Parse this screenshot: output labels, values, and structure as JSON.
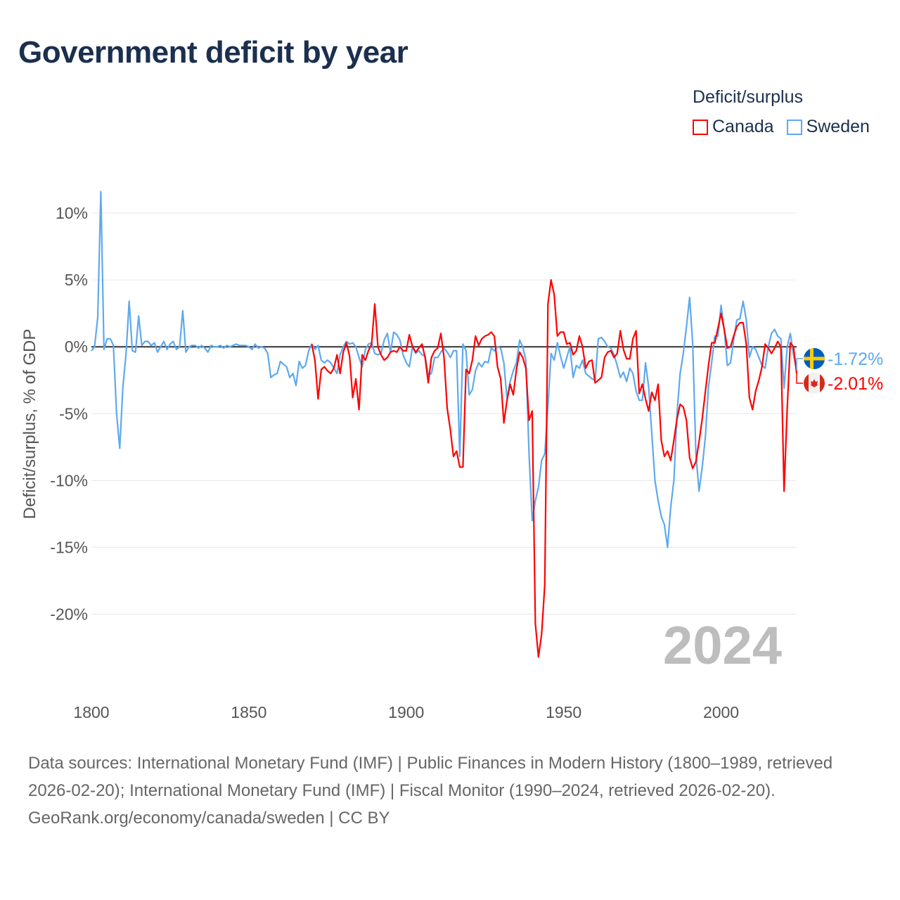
{
  "title": "Government deficit by year",
  "legend": {
    "title": "Deficit/surplus",
    "items": [
      {
        "label": "Canada",
        "color": "#ff0000"
      },
      {
        "label": "Sweden",
        "color": "#5ea9ee"
      }
    ]
  },
  "footer": {
    "sources": "Data sources: International Monetary Fund (IMF) | Public Finances in Modern History (1800–1989, retrieved 2026-02-20); International Monetary Fund (IMF) | Fiscal Monitor (1990–2024, retrieved 2026-02-20).",
    "credit": "GeoRank.org/economy/canada/sweden | CC BY"
  },
  "chart_data": {
    "type": "line",
    "title": "Government deficit by year",
    "xlabel": "",
    "ylabel": "Deficit/surplus, % of GDP",
    "xlim": [
      1800,
      2024
    ],
    "ylim": [
      -25.6,
      12
    ],
    "xticks": [
      1800,
      1850,
      1900,
      1950,
      2000
    ],
    "xtick_labels": [
      "1800",
      "1850",
      "1900",
      "1950",
      "2000"
    ],
    "yticks": [
      10,
      5,
      0,
      -5,
      -10,
      -15,
      -20
    ],
    "ytick_labels": [
      "10%",
      "5%",
      "0%",
      "-5%",
      "-10%",
      "-15%",
      "-20%"
    ],
    "grid": true,
    "legend_position": "top-right",
    "year_watermark": "2024",
    "end_labels": [
      {
        "series": "Sweden",
        "label": "-1.72%",
        "icon": "sweden-flag-icon"
      },
      {
        "series": "Canada",
        "label": "-2.01%",
        "icon": "canada-flag-icon"
      }
    ],
    "series": [
      {
        "name": "Sweden",
        "color": "#5ea9ee",
        "start_year": 1800,
        "values": [
          -0.3,
          0,
          2.2,
          11.6,
          -0.2,
          0.6,
          0.6,
          0.1,
          -5,
          -7.6,
          -3,
          -0.5,
          3.4,
          -0.3,
          -0.4,
          2.3,
          0.1,
          0.4,
          0.4,
          0.1,
          0.3,
          -0.4,
          0,
          0.4,
          -0.2,
          0.2,
          0.4,
          -0.2,
          0,
          2.7,
          -0.4,
          0,
          0.1,
          0.1,
          -0.1,
          0.1,
          -0.1,
          -0.4,
          0.1,
          0,
          0,
          0.1,
          -0.1,
          0.1,
          0,
          0.1,
          0.2,
          0.1,
          0.1,
          0.1,
          0,
          -0.2,
          0.2,
          -0.1,
          0,
          -0.1,
          -0.5,
          -2.3,
          -2.1,
          -2,
          -1.1,
          -1.3,
          -1.5,
          -2.3,
          -2,
          -2.9,
          -1.1,
          -1.6,
          -1.4,
          -0.3,
          0.2,
          -0.2,
          0.1,
          -1,
          -1.2,
          -1,
          -1.2,
          -1.6,
          -2,
          -0.6,
          0,
          0.4,
          0.2,
          0.3,
          0,
          -0.8,
          -1.5,
          -0.2,
          0.2,
          0.3,
          -0.5,
          -0.6,
          -0.5,
          0.5,
          1,
          -0.4,
          1.1,
          0.9,
          0.5,
          -0.6,
          -1.2,
          -1.5,
          0,
          -0.5,
          -0.3,
          -0.6,
          -0.7,
          -2.1,
          -2,
          -0.8,
          -0.8,
          -0.4,
          -0.1,
          -0.4,
          -0.8,
          -0.3,
          -0.3,
          -8.2,
          0.2,
          -0.3,
          -3.6,
          -3.2,
          -1.8,
          -1.2,
          -1.5,
          -1.1,
          -1.2,
          -0.1,
          -0.3,
          0,
          -0.1,
          -1.2,
          -3.9,
          -2.6,
          -1.8,
          -1.2,
          0.5,
          0,
          -1,
          -8,
          -13,
          -11.5,
          -10.5,
          -8.5,
          -8,
          -4.5,
          -0.5,
          -1,
          0.3,
          -0.7,
          -1.6,
          -0.8,
          0,
          -2.3,
          -1.4,
          -1.6,
          -1,
          -2,
          -2.2,
          -2.4,
          -2.5,
          0.6,
          0.7,
          0.4,
          0,
          -0.1,
          -0.6,
          -1.4,
          -2.3,
          -1.9,
          -2.6,
          -1.6,
          -2,
          -3.3,
          -4,
          -4,
          -1.2,
          -3,
          -6.5,
          -10,
          -11.5,
          -12.7,
          -13.3,
          -15,
          -12,
          -10,
          -5,
          -2,
          -0.5,
          1.5,
          3.7,
          0.2,
          -8,
          -10.8,
          -9,
          -6.8,
          -3,
          -1.2,
          0.8,
          0.8,
          3.1,
          1.3,
          -1.4,
          -1.2,
          0.5,
          2,
          2.1,
          3.4,
          2,
          -0.8,
          0,
          -0.2,
          -0.8,
          -1.4,
          -1.6,
          0,
          1,
          1.3,
          0.8,
          0.6,
          -3.1,
          0,
          1,
          -0.6,
          -1.72
        ]
      },
      {
        "name": "Canada",
        "color": "#ff0000",
        "start_year": 1870,
        "values": [
          0.2,
          -1,
          -3.9,
          -1.7,
          -1.5,
          -1.8,
          -2,
          -1.6,
          -0.6,
          -2,
          -0.4,
          0.3,
          -0.7,
          -3.8,
          -2.4,
          -4.7,
          -0.6,
          -1,
          -0.3,
          0.2,
          3.2,
          0,
          -0.6,
          -1,
          -0.8,
          -0.4,
          -0.3,
          -0.4,
          0,
          -0.3,
          -0.3,
          0.9,
          0,
          -0.4,
          -0.1,
          0.2,
          -0.8,
          -2.7,
          -0.8,
          -0.3,
          -0.1,
          1,
          -0.8,
          -4.6,
          -6.2,
          -8.2,
          -7.8,
          -9,
          -9,
          -1.7,
          -2,
          -1,
          0.8,
          0.1,
          0.6,
          0.8,
          0.9,
          1.1,
          0.8,
          -1.5,
          -2.4,
          -5.7,
          -4,
          -2.8,
          -3.6,
          -1.7,
          -0.4,
          -0.8,
          -1.6,
          -5.5,
          -4.8,
          -20.7,
          -23.2,
          -21.5,
          -17.8,
          3.2,
          5,
          3.9,
          0.8,
          1.1,
          1.1,
          0.2,
          0.3,
          -0.6,
          -0.3,
          0.8,
          0,
          -1.6,
          -1.1,
          -1,
          -2.7,
          -2.5,
          -2.3,
          -0.8,
          -0.4,
          -0.3,
          -0.8,
          -0.5,
          1.2,
          -0.2,
          -0.9,
          -0.9,
          0.6,
          1.2,
          -3.5,
          -2.8,
          -3.9,
          -4.8,
          -3.4,
          -4,
          -2.8,
          -7,
          -8.2,
          -7.8,
          -8.5,
          -7,
          -5.4,
          -4.3,
          -4.5,
          -5.5,
          -8.3,
          -9.1,
          -8.6,
          -7.1,
          -5.4,
          -3.4,
          -1.4,
          0.3,
          0.3,
          1.4,
          2.5,
          1.3,
          -0.1,
          0,
          0.8,
          1.5,
          1.8,
          1.8,
          0.2,
          -3.8,
          -4.7,
          -3.3,
          -2.5,
          -1.5,
          0.2,
          -0.1,
          -0.5,
          -0.1,
          0.4,
          0,
          -10.8,
          -4.6,
          0.3,
          0,
          -2.01
        ]
      }
    ]
  }
}
